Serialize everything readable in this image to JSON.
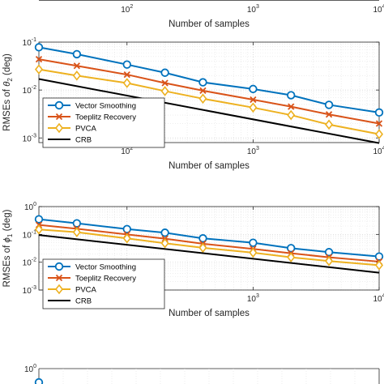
{
  "chart_data": [
    {
      "type": "line",
      "scale": "loglog",
      "xlabel": "Number of samples",
      "ylabel": "",
      "xlim": [
        20,
        10000
      ],
      "x_ticks": [
        {
          "v": 100,
          "label": "10",
          "exp": "2"
        },
        {
          "v": 1000,
          "label": "10",
          "exp": "3"
        },
        {
          "v": 10000,
          "label": "10",
          "exp": "4"
        }
      ],
      "y_ticks": [],
      "partial": "bottom-only",
      "series": []
    },
    {
      "type": "line",
      "scale": "loglog",
      "xlabel": "Number of samples",
      "ylabel": "RMSEs of θ₂ (deg)",
      "ylabel_parts": {
        "prefix": "RMSEs of ",
        "sym": "θ",
        "sub": "2",
        "suffix": " (deg)"
      },
      "xlim": [
        20,
        10000
      ],
      "ylim": [
        0.0008,
        0.1
      ],
      "grid": true,
      "legend_position": "lower-left",
      "x_ticks": [
        {
          "v": 100,
          "label": "10",
          "exp": "2"
        },
        {
          "v": 1000,
          "label": "10",
          "exp": "3"
        },
        {
          "v": 10000,
          "label": "10",
          "exp": "4"
        }
      ],
      "y_ticks": [
        {
          "v": 0.001,
          "label": "10",
          "exp": "-3"
        },
        {
          "v": 0.01,
          "label": "10",
          "exp": "-2"
        },
        {
          "v": 0.1,
          "label": "10",
          "exp": "-1"
        }
      ],
      "series": [
        {
          "name": "Vector Smoothing",
          "color": "#0072BD",
          "marker": "circle",
          "x": [
            20,
            40,
            100,
            200,
            400,
            1000,
            2000,
            4000,
            10000
          ],
          "y": [
            0.078,
            0.056,
            0.034,
            0.023,
            0.0145,
            0.0105,
            0.0078,
            0.0049,
            0.0034
          ]
        },
        {
          "name": "Toeplitz Recovery",
          "color": "#D95319",
          "marker": "x",
          "x": [
            20,
            40,
            100,
            200,
            400,
            1000,
            2000,
            4000,
            10000
          ],
          "y": [
            0.044,
            0.032,
            0.021,
            0.014,
            0.0097,
            0.0063,
            0.0045,
            0.0031,
            0.002
          ]
        },
        {
          "name": "PVCA",
          "color": "#EDB120",
          "marker": "diamond",
          "x": [
            20,
            40,
            100,
            200,
            400,
            1000,
            2000,
            4000,
            10000
          ],
          "y": [
            0.027,
            0.02,
            0.014,
            0.0095,
            0.0066,
            0.0043,
            0.003,
            0.0019,
            0.0012
          ]
        },
        {
          "name": "CRB",
          "color": "#000000",
          "marker": "none",
          "x": [
            20,
            10000
          ],
          "y": [
            0.017,
            0.00078
          ]
        }
      ]
    },
    {
      "type": "line",
      "scale": "loglog",
      "xlabel": "Number of samples",
      "ylabel": "RMSEs of ϕ₁ (deg)",
      "ylabel_parts": {
        "prefix": "RMSEs of ",
        "sym": "ϕ",
        "sub": "1",
        "suffix": " (deg)"
      },
      "xlim": [
        20,
        10000
      ],
      "ylim": [
        0.001,
        1
      ],
      "grid": true,
      "legend_position": "lower-left",
      "x_ticks": [
        {
          "v": 100,
          "label": "10",
          "exp": "2"
        },
        {
          "v": 1000,
          "label": "10",
          "exp": "3"
        },
        {
          "v": 10000,
          "label": "10",
          "exp": "4"
        }
      ],
      "y_ticks": [
        {
          "v": 0.001,
          "label": "10",
          "exp": "-3"
        },
        {
          "v": 0.01,
          "label": "10",
          "exp": "-2"
        },
        {
          "v": 0.1,
          "label": "10",
          "exp": "-1"
        },
        {
          "v": 1,
          "label": "10",
          "exp": "0"
        }
      ],
      "series": [
        {
          "name": "Vector Smoothing",
          "color": "#0072BD",
          "marker": "circle",
          "x": [
            20,
            40,
            100,
            200,
            400,
            1000,
            2000,
            4000,
            10000
          ],
          "y": [
            0.35,
            0.25,
            0.155,
            0.115,
            0.072,
            0.05,
            0.032,
            0.023,
            0.016
          ]
        },
        {
          "name": "Toeplitz Recovery",
          "color": "#D95319",
          "marker": "x",
          "x": [
            20,
            40,
            100,
            200,
            400,
            1000,
            2000,
            4000,
            10000
          ],
          "y": [
            0.22,
            0.16,
            0.1,
            0.07,
            0.046,
            0.03,
            0.021,
            0.015,
            0.0105
          ]
        },
        {
          "name": "PVCA",
          "color": "#EDB120",
          "marker": "diamond",
          "x": [
            20,
            40,
            100,
            200,
            400,
            1000,
            2000,
            4000,
            10000
          ],
          "y": [
            0.15,
            0.12,
            0.072,
            0.048,
            0.033,
            0.022,
            0.015,
            0.011,
            0.0078
          ]
        },
        {
          "name": "CRB",
          "color": "#000000",
          "marker": "none",
          "x": [
            20,
            10000
          ],
          "y": [
            0.095,
            0.0042
          ]
        }
      ]
    },
    {
      "type": "line",
      "scale": "loglog",
      "partial": "top-only",
      "ylabel": "g)",
      "xlim": [
        20,
        10000
      ],
      "y_ticks": [
        {
          "v": 1,
          "label": "10",
          "exp": "0"
        }
      ],
      "series": []
    }
  ]
}
